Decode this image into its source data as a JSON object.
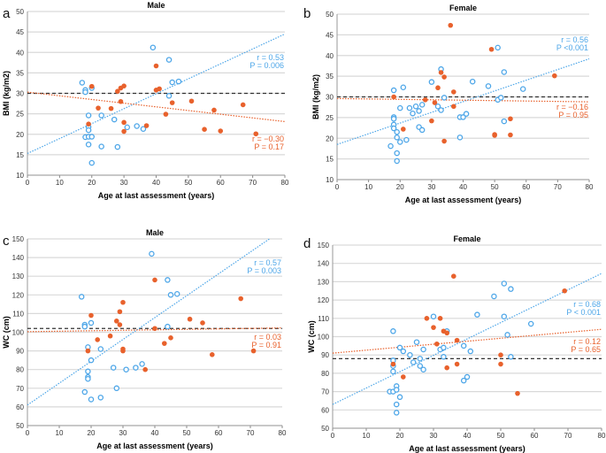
{
  "colors": {
    "male_or_female_baseline": "#4da6e8",
    "comparison": "#e8612c",
    "reference_line": "#333333",
    "grid": "#d9d9d9"
  },
  "chart_data": [
    {
      "panel": "a",
      "type": "scatter",
      "title": "Male",
      "xlabel": "Age at last assessment (years)",
      "ylabel": "BMI (kg/m2)",
      "xlim": [
        0,
        80
      ],
      "ylim": [
        10,
        50
      ],
      "xticks": [
        "0",
        "10",
        "20",
        "30",
        "40",
        "50",
        "60",
        "70",
        "80"
      ],
      "yticks": [
        "10",
        "15",
        "20",
        "25",
        "30",
        "35",
        "40",
        "45",
        "50"
      ],
      "grid": "horizontal",
      "reference_line": 30,
      "series": [
        {
          "marker": "open",
          "color": "#4da6e8",
          "points": [
            [
              17,
              32.6
            ],
            [
              18,
              30.8
            ],
            [
              18,
              30.3
            ],
            [
              20,
              31.3
            ],
            [
              19,
              24.6
            ],
            [
              19,
              21.8
            ],
            [
              19,
              21
            ],
            [
              18,
              19.3
            ],
            [
              19,
              19.4
            ],
            [
              20,
              19.4
            ],
            [
              19,
              17.5
            ],
            [
              20,
              13
            ],
            [
              23,
              24.6
            ],
            [
              23,
              17
            ],
            [
              27,
              23.6
            ],
            [
              28,
              16.9
            ],
            [
              31,
              21.7
            ],
            [
              34,
              22
            ],
            [
              36,
              21.3
            ],
            [
              39,
              41.2
            ],
            [
              44,
              38.2
            ],
            [
              45,
              32.7
            ],
            [
              47,
              32.9
            ],
            [
              44,
              29.4
            ]
          ],
          "trend": [
            [
              0,
              15.3
            ],
            [
              80,
              44.5
            ]
          ],
          "annotation": [
            "r = 0.53",
            "P = 0.006"
          ]
        },
        {
          "marker": "filled",
          "color": "#e8612c",
          "points": [
            [
              20,
              31.7
            ],
            [
              22,
              26.4
            ],
            [
              26,
              26.3
            ],
            [
              28,
              30.5
            ],
            [
              29,
              31.3
            ],
            [
              30,
              31.8
            ],
            [
              29,
              28
            ],
            [
              30,
              22.9
            ],
            [
              30,
              20.7
            ],
            [
              19,
              22.5
            ],
            [
              37,
              22.1
            ],
            [
              40,
              36.7
            ],
            [
              40,
              30.8
            ],
            [
              41,
              31.1
            ],
            [
              43,
              24.9
            ],
            [
              45,
              27.7
            ],
            [
              51,
              28.1
            ],
            [
              55,
              21.2
            ],
            [
              58,
              25.9
            ],
            [
              60,
              20.8
            ],
            [
              67,
              27.2
            ],
            [
              71,
              20.1
            ]
          ],
          "trend": [
            [
              0,
              30.3
            ],
            [
              80,
              23.1
            ]
          ],
          "annotation": [
            "r = −0.30",
            "P = 0.17"
          ]
        }
      ]
    },
    {
      "panel": "b",
      "type": "scatter",
      "title": "Female",
      "xlabel": "Age at last assessment (years)",
      "ylabel": "BMI (kg/m2)",
      "xlim": [
        0,
        80
      ],
      "ylim": [
        10,
        50
      ],
      "xticks": [
        "0",
        "10",
        "20",
        "30",
        "40",
        "50",
        "60",
        "70",
        "80"
      ],
      "yticks": [
        "10",
        "15",
        "20",
        "25",
        "30",
        "35",
        "40",
        "45",
        "50"
      ],
      "grid": "horizontal",
      "reference_line": 30,
      "series": [
        {
          "marker": "open",
          "color": "#4da6e8",
          "points": [
            [
              17,
              18.1
            ],
            [
              18,
              31.6
            ],
            [
              18,
              25.1
            ],
            [
              18,
              24.7
            ],
            [
              18,
              23.3
            ],
            [
              18,
              22.4
            ],
            [
              19,
              21.5
            ],
            [
              19,
              20.2
            ],
            [
              19,
              16.4
            ],
            [
              19,
              14.5
            ],
            [
              20,
              27.3
            ],
            [
              20,
              19.1
            ],
            [
              21,
              32.3
            ],
            [
              22,
              19.6
            ],
            [
              23,
              27.3
            ],
            [
              24,
              26
            ],
            [
              25,
              27.7
            ],
            [
              26,
              26.6
            ],
            [
              26,
              22.7
            ],
            [
              27,
              28.1
            ],
            [
              27,
              22
            ],
            [
              30,
              33.6
            ],
            [
              32,
              27.7
            ],
            [
              33,
              36.7
            ],
            [
              33,
              26.8
            ],
            [
              34,
              29.8
            ],
            [
              39,
              25.1
            ],
            [
              39,
              20.2
            ],
            [
              40,
              25.1
            ],
            [
              41,
              25.9
            ],
            [
              43,
              33.7
            ],
            [
              48,
              32.6
            ],
            [
              51,
              41.9
            ],
            [
              51,
              29.3
            ],
            [
              52,
              29.8
            ],
            [
              53,
              36
            ],
            [
              53,
              24.1
            ],
            [
              59,
              31.9
            ]
          ],
          "trend": [
            [
              0,
              18.5
            ],
            [
              80,
              39.2
            ]
          ],
          "annotation": [
            "r = 0.56",
            "P <0.001"
          ]
        },
        {
          "marker": "filled",
          "color": "#e8612c",
          "points": [
            [
              18,
              30
            ],
            [
              21,
              22.2
            ],
            [
              28,
              29.3
            ],
            [
              30,
              24.2
            ],
            [
              31,
              28.6
            ],
            [
              32,
              32.2
            ],
            [
              33,
              35.9
            ],
            [
              34,
              34.8
            ],
            [
              34,
              19.3
            ],
            [
              36,
              47.3
            ],
            [
              37,
              31.2
            ],
            [
              37,
              27.7
            ],
            [
              49,
              41.5
            ],
            [
              50,
              20.9
            ],
            [
              50,
              20.7
            ],
            [
              55,
              24.7
            ],
            [
              55,
              20.8
            ],
            [
              69,
              35.1
            ]
          ],
          "trend": [
            [
              0,
              29.6
            ],
            [
              80,
              28.8
            ]
          ],
          "annotation": [
            "r = −0.16",
            "P = 0.95"
          ]
        }
      ]
    },
    {
      "panel": "c",
      "type": "scatter",
      "title": "Male",
      "xlabel": "Age at last assessment (years)",
      "ylabel": "WC (cm)",
      "xlim": [
        0,
        80
      ],
      "ylim": [
        50,
        150
      ],
      "xticks": [
        "0",
        "10",
        "20",
        "30",
        "40",
        "50",
        "60",
        "70",
        "80"
      ],
      "yticks": [
        "50",
        "60",
        "70",
        "80",
        "90",
        "100",
        "110",
        "120",
        "130",
        "140",
        "150"
      ],
      "grid": "horizontal",
      "reference_line": 102,
      "series": [
        {
          "marker": "open",
          "color": "#4da6e8",
          "points": [
            [
              17,
              119
            ],
            [
              18,
              104
            ],
            [
              18,
              103
            ],
            [
              20,
              105
            ],
            [
              19,
              92
            ],
            [
              19,
              79
            ],
            [
              19,
              76
            ],
            [
              19,
              75
            ],
            [
              20,
              85
            ],
            [
              18,
              68
            ],
            [
              20,
              64
            ],
            [
              23,
              91
            ],
            [
              23,
              65
            ],
            [
              27,
              81
            ],
            [
              28,
              70
            ],
            [
              31,
              80
            ],
            [
              34,
              81
            ],
            [
              36,
              83
            ],
            [
              39,
              142
            ],
            [
              44,
              128
            ],
            [
              45,
              120
            ],
            [
              47,
              120.5
            ],
            [
              44,
              103
            ]
          ],
          "trend": [
            [
              0,
              61
            ],
            [
              76,
              150
            ]
          ],
          "annotation": [
            "r = 0.57",
            "P = 0.003"
          ]
        },
        {
          "marker": "filled",
          "color": "#e8612c",
          "points": [
            [
              19,
              90
            ],
            [
              20,
              109
            ],
            [
              22,
              96
            ],
            [
              26,
              98
            ],
            [
              28,
              106
            ],
            [
              29,
              111
            ],
            [
              29,
              104
            ],
            [
              30,
              116
            ],
            [
              30,
              91
            ],
            [
              30,
              90
            ],
            [
              37,
              80
            ],
            [
              40,
              128
            ],
            [
              40,
              102
            ],
            [
              43,
              94
            ],
            [
              45,
              97
            ],
            [
              51,
              107
            ],
            [
              55,
              105
            ],
            [
              58,
              88
            ],
            [
              67,
              118
            ],
            [
              71,
              90
            ]
          ],
          "trend": [
            [
              0,
              100.3
            ],
            [
              80,
              102.3
            ]
          ],
          "annotation": [
            "r = 0.03",
            "P = 0.91"
          ]
        }
      ]
    },
    {
      "panel": "d",
      "type": "scatter",
      "title": "Female",
      "xlabel": "Age at last assessment (years)",
      "ylabel": "WC (cm)",
      "xlim": [
        0,
        80
      ],
      "ylim": [
        50,
        150
      ],
      "xticks": [
        "0",
        "10",
        "20",
        "30",
        "40",
        "50",
        "60",
        "70",
        "80"
      ],
      "yticks": [
        "50",
        "60",
        "70",
        "80",
        "90",
        "100",
        "110",
        "120",
        "130",
        "140",
        "150"
      ],
      "grid": "horizontal",
      "reference_line": 88,
      "series": [
        {
          "marker": "open",
          "color": "#4da6e8",
          "points": [
            [
              17,
              70
            ],
            [
              18,
              70
            ],
            [
              18,
              103
            ],
            [
              18,
              87
            ],
            [
              18,
              84
            ],
            [
              18,
              81
            ],
            [
              19,
              73
            ],
            [
              19,
              71
            ],
            [
              19,
              63
            ],
            [
              19,
              58.5
            ],
            [
              20,
              67
            ],
            [
              20,
              94
            ],
            [
              21,
              92
            ],
            [
              23,
              90
            ],
            [
              24,
              86
            ],
            [
              25,
              97
            ],
            [
              26,
              88
            ],
            [
              26,
              84
            ],
            [
              27,
              93
            ],
            [
              27,
              82
            ],
            [
              30,
              111
            ],
            [
              32,
              93
            ],
            [
              33,
              94
            ],
            [
              33,
              89
            ],
            [
              34,
              103
            ],
            [
              39,
              95
            ],
            [
              39,
              76
            ],
            [
              40,
              78
            ],
            [
              41,
              92
            ],
            [
              43,
              112
            ],
            [
              48,
              122
            ],
            [
              51,
              129
            ],
            [
              51,
              111
            ],
            [
              52,
              101
            ],
            [
              53,
              126
            ],
            [
              53,
              89
            ],
            [
              59,
              107
            ]
          ],
          "trend": [
            [
              0,
              63
            ],
            [
              80,
              134.5
            ]
          ],
          "annotation": [
            "r = 0.68",
            "P < 0.001"
          ]
        },
        {
          "marker": "filled",
          "color": "#e8612c",
          "points": [
            [
              18,
              85
            ],
            [
              21,
              78
            ],
            [
              28,
              110
            ],
            [
              30,
              105
            ],
            [
              31,
              96
            ],
            [
              32,
              110
            ],
            [
              33,
              103
            ],
            [
              34,
              102
            ],
            [
              34,
              83
            ],
            [
              36,
              133
            ],
            [
              37,
              98
            ],
            [
              37,
              85
            ],
            [
              50,
              90
            ],
            [
              50,
              85
            ],
            [
              55,
              69
            ],
            [
              69,
              125
            ]
          ],
          "trend": [
            [
              0,
              91
            ],
            [
              80,
              104
            ]
          ],
          "annotation": [
            "r = 0.12",
            "P = 0.65"
          ]
        }
      ]
    }
  ]
}
